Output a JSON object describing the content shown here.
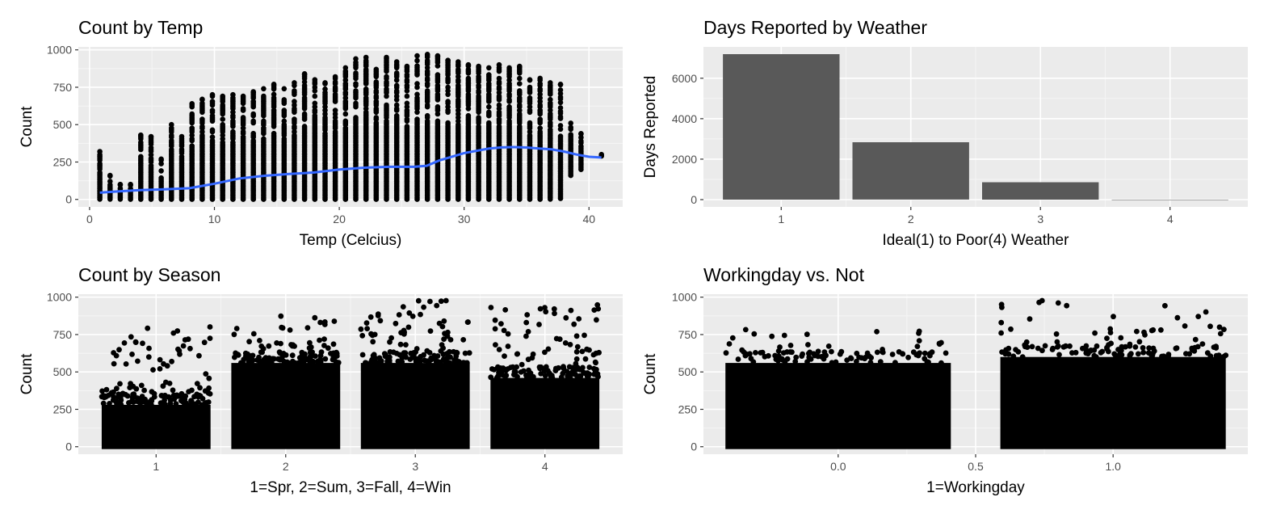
{
  "chart_data": [
    {
      "type": "scatter",
      "title": "Count by Temp",
      "xlabel": "Temp (Celcius)",
      "ylabel": "Count",
      "xlim": [
        -0.9,
        42.7
      ],
      "ylim": [
        -50,
        1020
      ],
      "xticks": [
        0,
        10,
        20,
        30,
        40
      ],
      "yticks": [
        0,
        250,
        500,
        750,
        1000
      ],
      "grid": true,
      "point_columns": [
        {
          "x": 0.82,
          "min": 2,
          "max": 320
        },
        {
          "x": 1.64,
          "min": 2,
          "max": 160
        },
        {
          "x": 2.46,
          "min": 2,
          "max": 100
        },
        {
          "x": 3.28,
          "min": 1,
          "max": 100
        },
        {
          "x": 4.1,
          "min": 1,
          "max": 430
        },
        {
          "x": 4.92,
          "min": 1,
          "max": 420
        },
        {
          "x": 5.74,
          "min": 1,
          "max": 270
        },
        {
          "x": 6.56,
          "min": 1,
          "max": 500
        },
        {
          "x": 7.38,
          "min": 1,
          "max": 420
        },
        {
          "x": 8.2,
          "min": 1,
          "max": 640
        },
        {
          "x": 9.02,
          "min": 1,
          "max": 670
        },
        {
          "x": 9.84,
          "min": 1,
          "max": 700
        },
        {
          "x": 10.66,
          "min": 1,
          "max": 690
        },
        {
          "x": 11.48,
          "min": 1,
          "max": 700
        },
        {
          "x": 12.3,
          "min": 1,
          "max": 690
        },
        {
          "x": 13.12,
          "min": 1,
          "max": 720
        },
        {
          "x": 13.94,
          "min": 1,
          "max": 740
        },
        {
          "x": 14.76,
          "min": 1,
          "max": 770
        },
        {
          "x": 15.58,
          "min": 1,
          "max": 740
        },
        {
          "x": 16.4,
          "min": 1,
          "max": 780
        },
        {
          "x": 17.22,
          "min": 1,
          "max": 840
        },
        {
          "x": 18.04,
          "min": 1,
          "max": 800
        },
        {
          "x": 18.86,
          "min": 1,
          "max": 780
        },
        {
          "x": 19.68,
          "min": 1,
          "max": 820
        },
        {
          "x": 20.5,
          "min": 1,
          "max": 880
        },
        {
          "x": 21.32,
          "min": 1,
          "max": 940
        },
        {
          "x": 22.14,
          "min": 1,
          "max": 950
        },
        {
          "x": 22.96,
          "min": 1,
          "max": 870
        },
        {
          "x": 23.78,
          "min": 1,
          "max": 950
        },
        {
          "x": 24.6,
          "min": 1,
          "max": 920
        },
        {
          "x": 25.42,
          "min": 1,
          "max": 890
        },
        {
          "x": 26.24,
          "min": 1,
          "max": 960
        },
        {
          "x": 27.06,
          "min": 1,
          "max": 970
        },
        {
          "x": 27.88,
          "min": 1,
          "max": 960
        },
        {
          "x": 28.7,
          "min": 1,
          "max": 930
        },
        {
          "x": 29.52,
          "min": 1,
          "max": 920
        },
        {
          "x": 30.34,
          "min": 1,
          "max": 900
        },
        {
          "x": 31.16,
          "min": 1,
          "max": 890
        },
        {
          "x": 31.98,
          "min": 1,
          "max": 880
        },
        {
          "x": 32.8,
          "min": 1,
          "max": 900
        },
        {
          "x": 33.62,
          "min": 1,
          "max": 880
        },
        {
          "x": 34.44,
          "min": 1,
          "max": 890
        },
        {
          "x": 35.26,
          "min": 1,
          "max": 800
        },
        {
          "x": 36.08,
          "min": 1,
          "max": 810
        },
        {
          "x": 36.9,
          "min": 2,
          "max": 780
        },
        {
          "x": 37.72,
          "min": 6,
          "max": 770
        },
        {
          "x": 38.54,
          "min": 160,
          "max": 510
        },
        {
          "x": 39.36,
          "min": 200,
          "max": 440
        },
        {
          "x": 41.0,
          "min": 290,
          "max": 300
        }
      ],
      "smooth": {
        "color": "#3366ff",
        "x": [
          0.82,
          2,
          4,
          6,
          8,
          10,
          12,
          14,
          16,
          18,
          20,
          22,
          24,
          26,
          27,
          28,
          30,
          32,
          33,
          34,
          35,
          36,
          37,
          38,
          39,
          40,
          41
        ],
        "y": [
          45,
          52,
          62,
          68,
          75,
          105,
          140,
          158,
          170,
          180,
          200,
          212,
          218,
          218,
          225,
          260,
          310,
          340,
          348,
          350,
          347,
          340,
          335,
          320,
          300,
          285,
          280
        ]
      }
    },
    {
      "type": "bar",
      "title": "Days Reported by Weather",
      "xlabel": "Ideal(1) to Poor(4) Weather",
      "ylabel": "Days Reported",
      "categories": [
        "1",
        "2",
        "3",
        "4"
      ],
      "values": [
        7192,
        2834,
        859,
        1
      ],
      "ylim": [
        -360,
        7550
      ],
      "yticks": [
        0,
        2000,
        4000,
        6000
      ],
      "bar_color": "#595959",
      "grid": true
    },
    {
      "type": "scatter",
      "title": "Count by Season",
      "xlabel": "1=Spr, 2=Sum, 3=Fall, 4=Win",
      "ylabel": "Count",
      "xlim": [
        0.4,
        4.6
      ],
      "ylim": [
        -50,
        1020
      ],
      "xticks": [
        1,
        2,
        3,
        4
      ],
      "yticks": [
        0,
        250,
        500,
        750,
        1000
      ],
      "grid": true,
      "jitter_groups": [
        {
          "x": 1,
          "dense_max": 280,
          "max": 801
        },
        {
          "x": 2,
          "dense_max": 560,
          "max": 873
        },
        {
          "x": 3,
          "dense_max": 560,
          "max": 977
        },
        {
          "x": 4,
          "dense_max": 460,
          "max": 948
        }
      ]
    },
    {
      "type": "scatter",
      "title": "Workingday vs. Not",
      "xlabel": "1=Workingday",
      "ylabel": "Count",
      "xlim": [
        -0.49,
        1.49
      ],
      "ylim": [
        -50,
        1020
      ],
      "xticks": [
        0.0,
        0.5,
        1.0
      ],
      "xtick_labels": [
        "0.0",
        "0.5",
        "1.0"
      ],
      "yticks": [
        0,
        250,
        500,
        750,
        1000
      ],
      "grid": true,
      "jitter_groups": [
        {
          "x": 0,
          "dense_max": 560,
          "max": 783
        },
        {
          "x": 1,
          "dense_max": 600,
          "max": 977
        }
      ]
    }
  ]
}
